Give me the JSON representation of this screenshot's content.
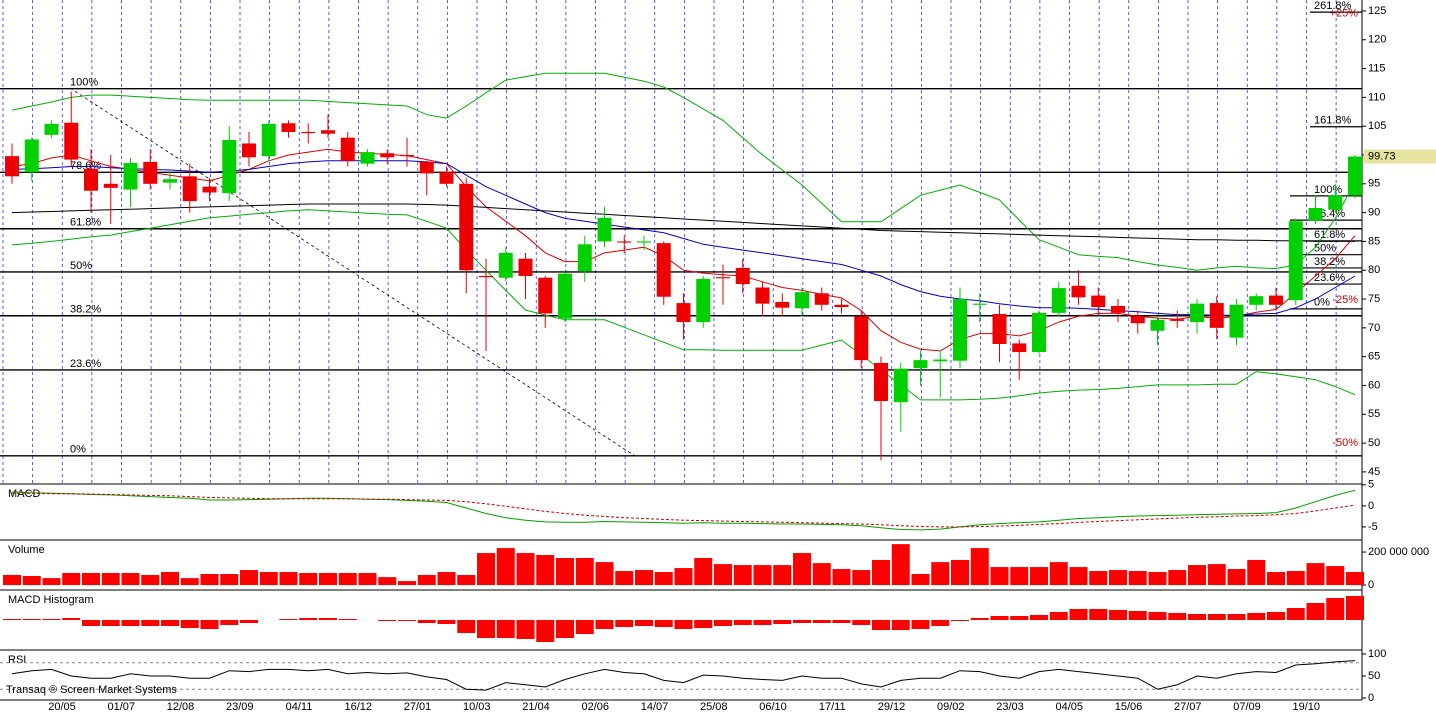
{
  "footer": "Transaq ® Screen Market Systems",
  "chart_data": [
    {
      "type": "candlestick",
      "open": [
        99.8,
        97,
        103.5,
        105.6,
        97.6,
        95,
        94,
        98.8,
        95.2,
        96.3,
        94.5,
        93.4,
        102,
        99.8,
        105.5,
        104,
        104.3,
        103,
        98.5,
        100.3,
        100,
        98.8,
        97,
        95,
        79,
        78.7,
        82,
        78.7,
        71.6,
        79.8,
        85,
        85,
        84.8,
        84.7,
        74.3,
        71,
        78.8,
        80.4,
        77,
        74.5,
        73.4,
        76,
        74,
        72,
        63.9,
        57.1,
        63,
        64.2,
        64.3,
        74,
        72.4,
        67.3,
        65.8,
        72.6,
        77.3,
        75.6,
        73.8,
        72,
        69.5,
        71.5,
        71,
        74.3,
        68.3,
        74,
        75.6,
        74.8,
        88.6,
        90.5,
        93
      ],
      "high": [
        102,
        103,
        106,
        111,
        101,
        100,
        99.5,
        101,
        97,
        98.5,
        96,
        105,
        104,
        106,
        106,
        105.5,
        107,
        104,
        101,
        101,
        103,
        99,
        98,
        96,
        82,
        84,
        83,
        79,
        80,
        86,
        91,
        86,
        86,
        85,
        76,
        79,
        81,
        82,
        78,
        76,
        77,
        77,
        75,
        73,
        65,
        64,
        66,
        66,
        77,
        76,
        74,
        68,
        73,
        78,
        80,
        77,
        75,
        73,
        72,
        73,
        75,
        75.5,
        75,
        76,
        77,
        89,
        93,
        95,
        100
      ],
      "low": [
        95,
        95.5,
        103,
        98,
        90,
        88,
        91,
        94,
        94,
        90,
        92,
        92,
        98,
        99,
        103,
        102,
        103,
        98,
        98,
        98.5,
        98,
        93,
        94.5,
        76,
        66,
        78,
        75,
        70,
        71,
        78,
        84,
        83,
        83.5,
        74,
        68,
        70,
        74,
        76,
        72,
        72,
        72,
        73,
        72.5,
        63,
        47,
        52,
        60,
        58,
        63,
        71,
        64,
        61,
        65.5,
        72,
        74,
        72,
        71,
        69,
        67,
        70,
        69,
        68,
        67,
        73,
        73,
        74,
        88,
        90,
        92.5
      ],
      "close": [
        96.3,
        102.7,
        105.4,
        99.2,
        93.8,
        94.3,
        98.6,
        95,
        95.8,
        92,
        93.5,
        102.6,
        99.6,
        105.4,
        104,
        103.8,
        103.7,
        99,
        100.5,
        99.6,
        99.8,
        96.8,
        95,
        80,
        78.8,
        83,
        79,
        72.5,
        79.4,
        84.5,
        89.1,
        84.8,
        85,
        75.4,
        71,
        78.5,
        78.6,
        77.6,
        74.2,
        73.5,
        76.2,
        74,
        73.6,
        64.4,
        57.3,
        62.9,
        64.4,
        64.5,
        75,
        74.2,
        67.2,
        65.8,
        72.6,
        76.9,
        75.3,
        73.6,
        72.6,
        70.8,
        71.4,
        71.2,
        74.2,
        70,
        74,
        75.5,
        74,
        88.5,
        90.8,
        93,
        99.73
      ],
      "up_color": "#00d000",
      "down_color": "#ee0000",
      "ylim": [
        42.9,
        126.9
      ],
      "yticks": [
        45,
        50,
        55,
        60,
        65,
        70,
        75,
        80,
        85,
        90,
        95,
        100,
        105,
        110,
        115,
        120,
        125
      ],
      "overlays": [
        {
          "color": "#00b000",
          "values": [
            107.8,
            108.5,
            109.2,
            110,
            110.4,
            110.4,
            110.2,
            110,
            109.8,
            109.6,
            109.5,
            109.5,
            109.5,
            109.5,
            109.5,
            109.5,
            109.3,
            109.1,
            108.9,
            108.7,
            108.5,
            107,
            106.4,
            108.5,
            110.8,
            113,
            113.6,
            114.2,
            114.2,
            114.2,
            114.2,
            113.5,
            112.8,
            111.8,
            110,
            108,
            106,
            103,
            100,
            97.4,
            94.8,
            91.6,
            88.4,
            88.4,
            88.4,
            90.7,
            93,
            93.9,
            94.8,
            93.5,
            92.2,
            88.7,
            85.3,
            84,
            82.7,
            82.4,
            82.2,
            81.5,
            80.9,
            80.5,
            80,
            80.4,
            80.7,
            80.4,
            80.3,
            80.9,
            84,
            89,
            95.3
          ]
        },
        {
          "color": "#00b000",
          "values": [
            84.4,
            84.7,
            85,
            85.4,
            85.8,
            86.1,
            86.7,
            87.3,
            87.9,
            88.5,
            89.1,
            89.4,
            89.7,
            90,
            90.3,
            90.5,
            90.3,
            90.1,
            89.9,
            89.7,
            89.6,
            88.5,
            87.3,
            83.5,
            80,
            76.5,
            73.1,
            72.2,
            71.4,
            71.4,
            71.4,
            70.1,
            68.8,
            67.5,
            66.2,
            66.2,
            66.1,
            66.1,
            66.1,
            66.1,
            66.1,
            67,
            67.9,
            65.3,
            62.7,
            60.1,
            57.5,
            57.5,
            57.5,
            57.6,
            57.8,
            58.2,
            58.7,
            59,
            59.2,
            59.3,
            59.5,
            59.8,
            60.1,
            60.1,
            60.1,
            60.2,
            60.2,
            62.4,
            62,
            61.5,
            61,
            59.8,
            58.4
          ]
        },
        {
          "color": "#e00000",
          "values": [
            98,
            98.5,
            99.5,
            100,
            99,
            98,
            97.5,
            97,
            96.5,
            96,
            95.5,
            96.5,
            97.5,
            99,
            100,
            100.5,
            101,
            100.5,
            100.3,
            100.1,
            99.9,
            99.2,
            98.5,
            94.5,
            91,
            88.5,
            86,
            83,
            81.5,
            81.5,
            83,
            83.5,
            84,
            82.5,
            80,
            79.5,
            79.2,
            79,
            78,
            77,
            76.5,
            75.8,
            75.2,
            73,
            69.5,
            67.5,
            66.3,
            66,
            68,
            69,
            69,
            68.6,
            69.5,
            71,
            72,
            72.5,
            72.5,
            72,
            71.7,
            71.5,
            72,
            71.6,
            72,
            72.7,
            73.2,
            76,
            79,
            82,
            86
          ]
        },
        {
          "color": "#0000cc",
          "values": [
            97.5,
            97.6,
            97.8,
            98,
            98,
            97.8,
            97.6,
            97.5,
            97.4,
            97.2,
            97,
            97.2,
            97.5,
            98,
            98.5,
            98.8,
            99,
            99,
            99,
            99,
            99,
            98.8,
            98.5,
            96.5,
            94.5,
            93,
            91.5,
            90,
            89,
            88.5,
            88,
            87.5,
            87,
            86.5,
            85.5,
            84.5,
            84,
            83.5,
            83,
            82.5,
            82,
            81.5,
            81,
            80,
            79,
            77.5,
            76.3,
            75.5,
            75,
            74.7,
            74.2,
            73.8,
            73.5,
            73.5,
            73.4,
            73.2,
            73,
            72.8,
            72.5,
            72.3,
            72.3,
            72.2,
            72.2,
            72.4,
            72.5,
            73.5,
            75,
            77,
            79
          ]
        },
        {
          "color": "#000000",
          "values": [
            90,
            90.1,
            90.2,
            90.3,
            90.4,
            90.5,
            90.6,
            90.7,
            90.8,
            90.9,
            91,
            91.1,
            91.2,
            91.3,
            91.4,
            91.5,
            91.5,
            91.5,
            91.5,
            91.5,
            91.5,
            91.4,
            91.3,
            91.1,
            90.9,
            90.7,
            90.5,
            90.3,
            90.1,
            89.9,
            89.7,
            89.5,
            89.3,
            89.1,
            88.9,
            88.7,
            88.5,
            88.3,
            88.1,
            87.9,
            87.7,
            87.5,
            87.3,
            87.1,
            86.9,
            86.8,
            86.7,
            86.6,
            86.5,
            86.4,
            86.3,
            86.2,
            86.1,
            86,
            85.9,
            85.8,
            85.7,
            85.6,
            85.5,
            85.4,
            85.3,
            85.3,
            85.2,
            85.2,
            85.1,
            85.1,
            85,
            85,
            85
          ]
        }
      ],
      "fib_levels": [
        {
          "value": 111.5,
          "label": "100%"
        },
        {
          "value": 97,
          "label": "78.6%"
        },
        {
          "value": 87.2,
          "label": "61.8%"
        },
        {
          "value": 79.7,
          "label": "50%"
        },
        {
          "value": 72.1,
          "label": "38.2%"
        },
        {
          "value": 62.7,
          "label": "23.6%"
        },
        {
          "value": 47.8,
          "label": "0%"
        }
      ],
      "fib_extension": [
        {
          "value": 124.8,
          "label": "261.8%"
        },
        {
          "value": 104.9,
          "label": "161.8%"
        },
        {
          "value": 92.9,
          "label": "100%"
        },
        {
          "value": 88.7,
          "label": "76.4%"
        },
        {
          "value": 85.1,
          "label": "61.8%"
        },
        {
          "value": 82.7,
          "label": "50%"
        },
        {
          "value": 80.4,
          "label": "38.2%"
        },
        {
          "value": 77.6,
          "label": "23.6%"
        },
        {
          "value": 73.3,
          "label": "0%"
        }
      ],
      "pct_labels": [
        {
          "value": 124.5,
          "label": "+25%"
        },
        {
          "value": 74.8,
          "label": "-25%"
        },
        {
          "value": 50,
          "label": "-50%"
        }
      ],
      "x_labels": [
        "20/05",
        "01/07",
        "12/08",
        "23/09",
        "04/11",
        "16/12",
        "27/01",
        "10/03",
        "21/04",
        "02/06",
        "14/07",
        "25/08",
        "06/10",
        "17/11",
        "29/12",
        "09/02",
        "23/03",
        "04/05",
        "15/06",
        "27/07",
        "07/09",
        "19/10"
      ]
    },
    {
      "type": "line",
      "title": "MACD",
      "series": [
        {
          "color": "#00a000",
          "values": [
            3.3,
            3.1,
            3,
            2.9,
            2.7,
            2.6,
            2.4,
            2.2,
            2,
            1.8,
            1.4,
            1.4,
            1.5,
            1.6,
            1.7,
            1.8,
            1.8,
            1.7,
            1.6,
            1.5,
            1.3,
            1.1,
            0.8,
            -0.5,
            -1.8,
            -2.8,
            -3.4,
            -3.8,
            -3.9,
            -3.9,
            -3.7,
            -3.8,
            -3.9,
            -4,
            -4.1,
            -4,
            -4.1,
            -4.1,
            -4.2,
            -4.3,
            -4.3,
            -4.4,
            -4.5,
            -4.7,
            -5.2,
            -5.6,
            -5.7,
            -5.5,
            -5,
            -4.5,
            -4.2,
            -4,
            -3.8,
            -3.4,
            -3,
            -2.8,
            -2.6,
            -2.4,
            -2.3,
            -2.2,
            -2.1,
            -2,
            -1.9,
            -1.8,
            -1.6,
            -0.5,
            1,
            2.5,
            3.7
          ]
        },
        {
          "color": "#cc0000",
          "dashed": true,
          "values": [
            3,
            3,
            2.9,
            2.9,
            2.8,
            2.7,
            2.6,
            2.5,
            2.4,
            2.2,
            2,
            1.9,
            1.8,
            1.7,
            1.7,
            1.7,
            1.7,
            1.7,
            1.6,
            1.6,
            1.5,
            1.4,
            1.3,
            1,
            0.5,
            -0.1,
            -0.7,
            -1.3,
            -1.8,
            -2.2,
            -2.5,
            -2.8,
            -3,
            -3.2,
            -3.4,
            -3.5,
            -3.6,
            -3.7,
            -3.8,
            -3.9,
            -4,
            -4.1,
            -4.2,
            -4.3,
            -4.5,
            -4.7,
            -4.9,
            -5,
            -5,
            -4.9,
            -4.8,
            -4.6,
            -4.4,
            -4.2,
            -3.9,
            -3.7,
            -3.5,
            -3.3,
            -3.1,
            -2.9,
            -2.7,
            -2.6,
            -2.4,
            -2.3,
            -2.1,
            -1.8,
            -1.2,
            -0.5,
            0.2
          ]
        }
      ],
      "ylim": [
        -8.1,
        5.2
      ],
      "yticks": [
        5,
        0,
        -5
      ]
    },
    {
      "type": "bar",
      "title": "Volume",
      "color": "#ff0000",
      "values": [
        61000000,
        55000000,
        42000000,
        73000000,
        73000000,
        73000000,
        73000000,
        61000000,
        79000000,
        42000000,
        67000000,
        67000000,
        91000000,
        79000000,
        79000000,
        73000000,
        73000000,
        73000000,
        73000000,
        48000000,
        24000000,
        61000000,
        79000000,
        61000000,
        194000000,
        224000000,
        194000000,
        182000000,
        164000000,
        164000000,
        139000000,
        85000000,
        91000000,
        79000000,
        103000000,
        164000000,
        127000000,
        121000000,
        121000000,
        121000000,
        194000000,
        133000000,
        97000000,
        91000000,
        152000000,
        248000000,
        67000000,
        139000000,
        152000000,
        224000000,
        109000000,
        109000000,
        109000000,
        139000000,
        109000000,
        85000000,
        91000000,
        85000000,
        79000000,
        91000000,
        121000000,
        127000000,
        97000000,
        152000000,
        79000000,
        85000000,
        133000000,
        115000000,
        79000000
      ],
      "ylim": [
        -30000000,
        273000000
      ],
      "yticks": [
        {
          "value": 200000000,
          "label": "200 000 000"
        },
        0
      ]
    },
    {
      "type": "bar",
      "title": "MACD Histogram",
      "color": "#ff0000",
      "values": [
        0.1,
        0.1,
        0.1,
        0.2,
        -0.6,
        -0.6,
        -0.6,
        -0.6,
        -0.6,
        -0.8,
        -0.9,
        -0.5,
        -0.3,
        0,
        0.1,
        0.2,
        0.2,
        0.1,
        0,
        -0.1,
        -0.1,
        -0.3,
        -0.4,
        -1.3,
        -1.8,
        -1.8,
        -1.9,
        -2.2,
        -1.8,
        -1.4,
        -0.9,
        -0.7,
        -0.6,
        -0.7,
        -0.9,
        -0.8,
        -0.6,
        -0.5,
        -0.5,
        -0.4,
        -0.3,
        -0.3,
        -0.3,
        -0.5,
        -1,
        -1,
        -0.9,
        -0.6,
        -0.1,
        0.2,
        0.4,
        0.4,
        0.5,
        0.8,
        1.1,
        1.1,
        1,
        0.9,
        0.8,
        0.7,
        0.6,
        0.6,
        0.6,
        0.7,
        0.8,
        1.2,
        1.7,
        2.2,
        2.4
      ],
      "ylim": [
        -3,
        3
      ]
    },
    {
      "type": "line",
      "title": "RSI",
      "series": [
        {
          "color": "#000000",
          "values": [
            55,
            62,
            65,
            50,
            45,
            45,
            55,
            50,
            50,
            45,
            45,
            62,
            60,
            65,
            65,
            62,
            65,
            55,
            58,
            55,
            57,
            48,
            42,
            20,
            18,
            35,
            30,
            25,
            42,
            55,
            65,
            58,
            55,
            40,
            35,
            52,
            50,
            45,
            42,
            40,
            50,
            45,
            45,
            32,
            25,
            40,
            45,
            45,
            62,
            60,
            50,
            45,
            60,
            65,
            60,
            55,
            50,
            45,
            20,
            30,
            50,
            45,
            55,
            60,
            58,
            75,
            78,
            82,
            85
          ]
        }
      ],
      "ref_lines": [
        80,
        20
      ],
      "ylim": [
        -4.5,
        109
      ],
      "yticks": [
        100,
        50,
        0
      ]
    }
  ]
}
